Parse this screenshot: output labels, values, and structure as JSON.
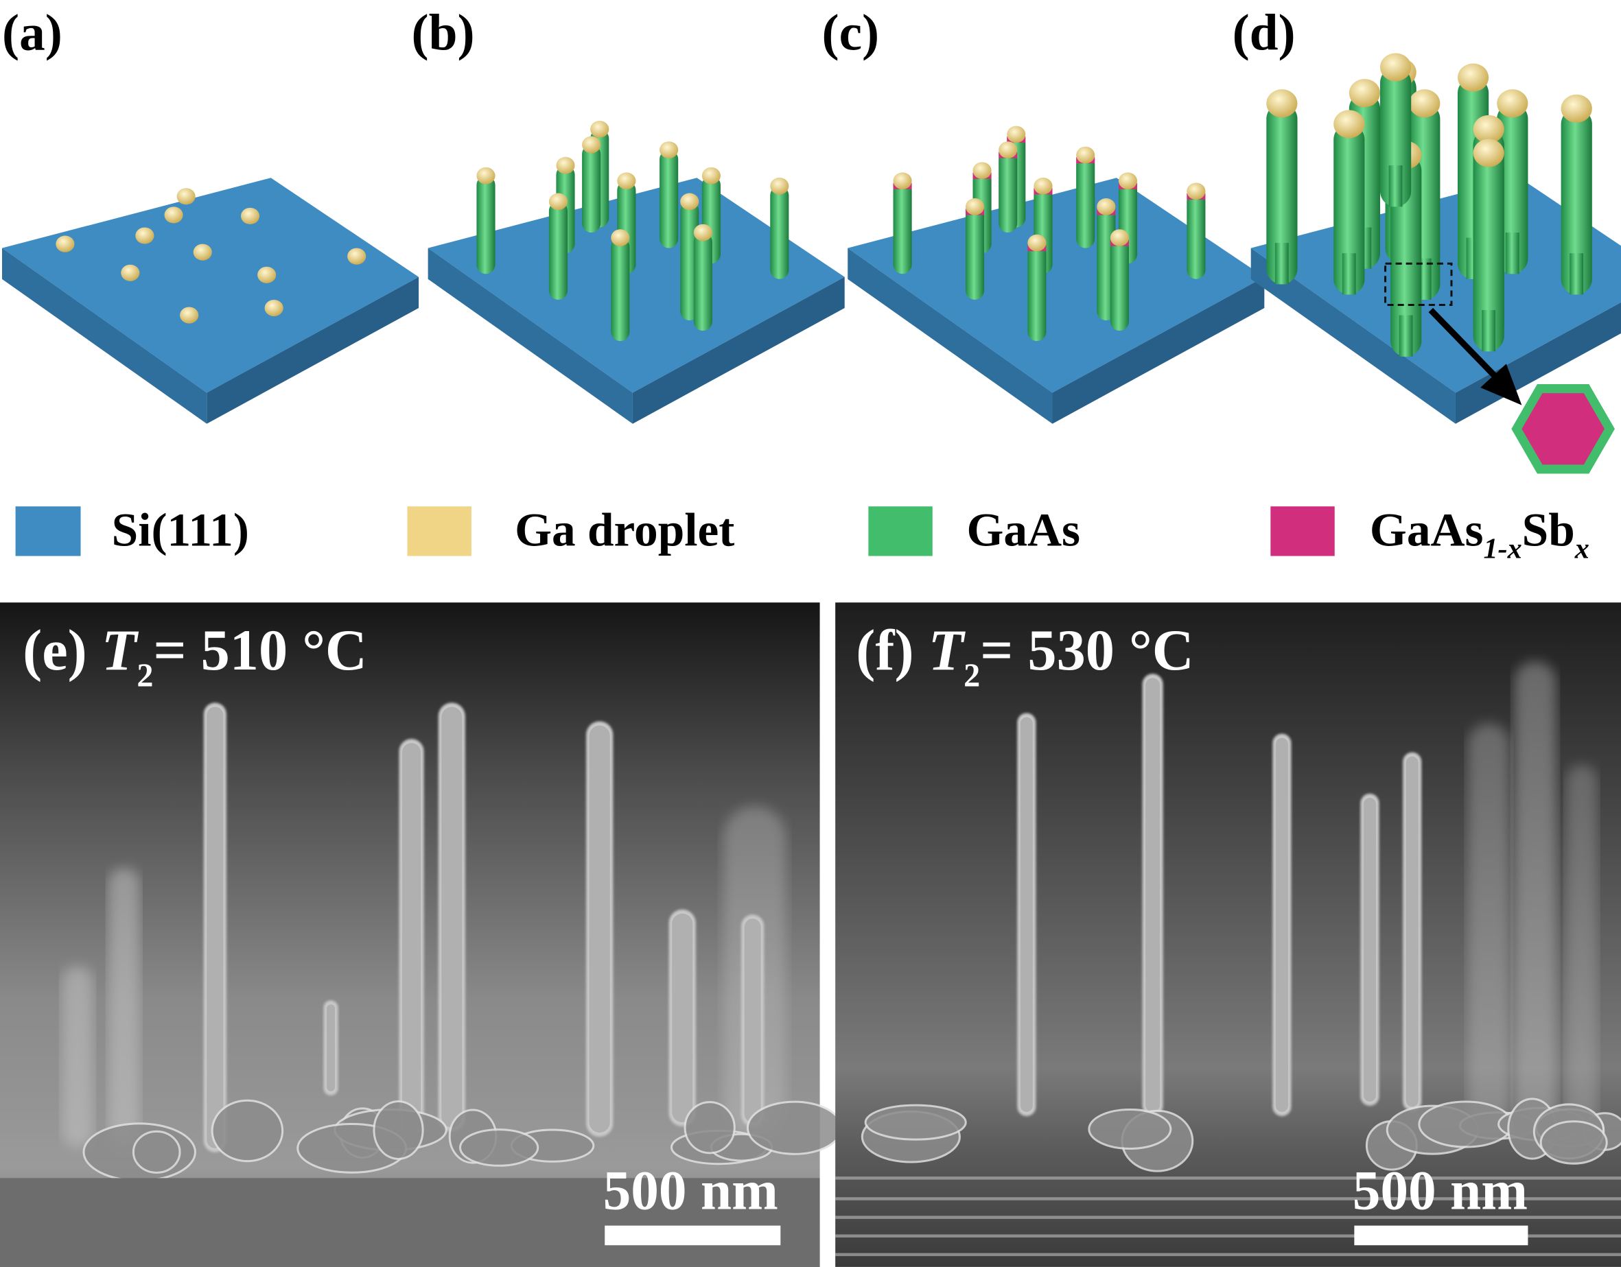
{
  "panels": {
    "a": {
      "label": "(a)"
    },
    "b": {
      "label": "(b)"
    },
    "c": {
      "label": "(c)"
    },
    "d": {
      "label": "(d)"
    }
  },
  "legend": [
    {
      "label": "Si(111)",
      "color": "#3f8cc2"
    },
    {
      "label": "Ga droplet",
      "color": "#efd585"
    },
    {
      "label": "GaAs",
      "color": "#42bd6b"
    },
    {
      "label": "GaAs",
      "sub1": "1-x",
      "mid": "Sb",
      "sub2": "x",
      "color": "#d22e7e"
    }
  ],
  "sem": {
    "e": {
      "prefix": "(e) ",
      "var": "T",
      "sub": "2",
      "suffix": "= 510 °C",
      "scale_label": "500 nm"
    },
    "f": {
      "prefix": "(f) ",
      "var": "T",
      "sub": "2",
      "suffix": "= 530 °C",
      "scale_label": "500 nm"
    }
  },
  "colors": {
    "substrate_top": "#3f8cc2",
    "substrate_side": "#2f6f9e",
    "droplet": "#efd585",
    "nanowire": "#42bd6b",
    "alloy": "#d22e7e"
  }
}
